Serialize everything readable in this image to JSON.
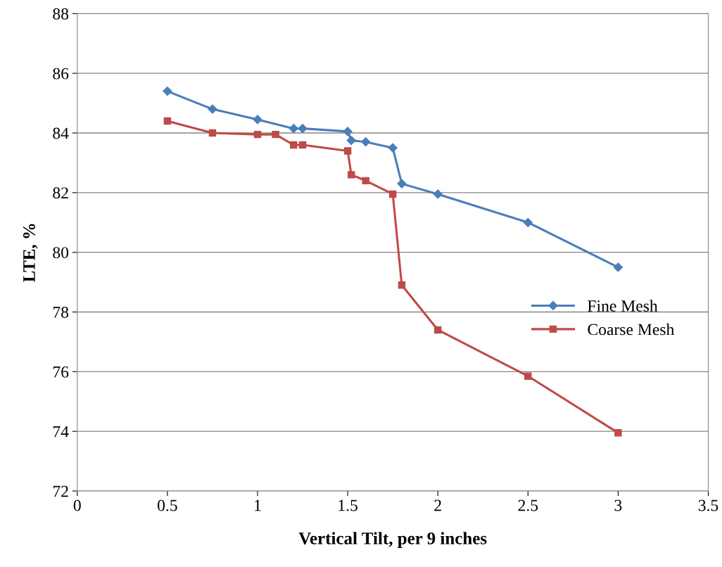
{
  "chart_data": {
    "type": "line",
    "xlabel": "Vertical Tilt, per 9 inches",
    "ylabel": "LTE, %",
    "xlim": [
      0,
      3.5
    ],
    "xticks": [
      0,
      0.5,
      1,
      1.5,
      2,
      2.5,
      3,
      3.5
    ],
    "ylim": [
      72,
      88
    ],
    "yticks": [
      72,
      74,
      76,
      78,
      80,
      82,
      84,
      86,
      88
    ],
    "grid": "y",
    "legend": "right",
    "series": [
      {
        "name": "Fine Mesh",
        "color": "#4a7ebb",
        "marker": "diamond",
        "x": [
          0.5,
          0.75,
          1.0,
          1.2,
          1.25,
          1.5,
          1.52,
          1.6,
          1.75,
          1.8,
          2.0,
          2.5,
          3.0
        ],
        "values": [
          85.4,
          84.8,
          84.45,
          84.15,
          84.15,
          84.05,
          83.75,
          83.7,
          83.5,
          82.3,
          81.95,
          81.0,
          79.5
        ]
      },
      {
        "name": "Coarse Mesh",
        "color": "#be4b48",
        "marker": "square",
        "x": [
          0.5,
          0.75,
          1.0,
          1.1,
          1.2,
          1.25,
          1.5,
          1.52,
          1.6,
          1.75,
          1.8,
          2.0,
          2.5,
          3.0
        ],
        "values": [
          84.4,
          84.0,
          83.95,
          83.95,
          83.6,
          83.6,
          83.4,
          82.6,
          82.4,
          81.95,
          78.9,
          77.4,
          75.85,
          73.95
        ]
      }
    ]
  }
}
